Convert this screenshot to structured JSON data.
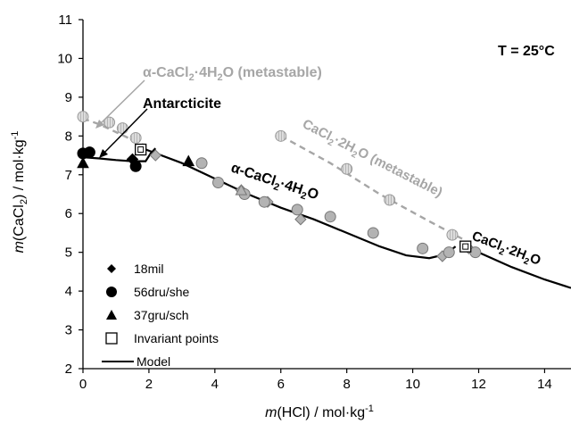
{
  "chart_data": {
    "type": "scatter",
    "xlabel": {
      "prefix": "m",
      "body": "(HCl) / mol·kg",
      "sup": "-1"
    },
    "ylabel": {
      "prefix": "m",
      "body1": "(CaCl",
      "sub": "2",
      "body2": ") / mol·kg",
      "sup": "-1"
    },
    "xlim": [
      0,
      14.8
    ],
    "ylim": [
      2,
      11
    ],
    "xticks": [
      "0",
      "2",
      "4",
      "6",
      "8",
      "10",
      "12",
      "14"
    ],
    "yticks": [
      "2",
      "3",
      "4",
      "5",
      "6",
      "7",
      "8",
      "9",
      "10",
      "11"
    ],
    "grid": false,
    "legend_position": "bottom-left",
    "legend": [
      {
        "name": "18mil",
        "marker": "diamond"
      },
      {
        "name": "56dru/she",
        "marker": "circle"
      },
      {
        "name": "37gru/sch",
        "marker": "triangle"
      },
      {
        "name": "Invariant points",
        "marker": "open-square"
      },
      {
        "name": "Model",
        "marker": "line"
      }
    ],
    "annotations": {
      "temperature": "T = 25°C",
      "antarcticite": "Antarcticite",
      "alpha_meta": {
        "alpha": "α",
        "text1": "-CaCl",
        "sub": "2",
        "text2": "·4H",
        "sub2": "2",
        "text3": "O (metastable)"
      },
      "alpha_stable": {
        "alpha": "α",
        "text1": "-CaCl",
        "sub": "2",
        "text2": "·4H",
        "sub2": "2",
        "text3": "O"
      },
      "dihydrate_meta": {
        "text1": "CaCl",
        "sub": "2",
        "text2": "·2H",
        "sub2": "2",
        "text3": "O (metastable)"
      },
      "dihydrate": {
        "text1": "CaCl",
        "sub": "2",
        "text2": "·2H",
        "sub2": "2",
        "text3": "O"
      }
    },
    "colors": {
      "black": "#000000",
      "grey_marker": "#b3b3b3",
      "meta_grey": "#a6a6a6",
      "hatched": "#c8c8c8"
    },
    "series": [
      {
        "name": "18mil",
        "marker": "diamond",
        "fill": "#000000",
        "points": [
          [
            1.5,
            7.4
          ]
        ]
      },
      {
        "name": "18mil-grey",
        "marker": "diamond",
        "fill": "#b3b3b3",
        "points": [
          [
            2.2,
            7.5
          ],
          [
            4.8,
            6.6
          ],
          [
            5.6,
            6.3
          ],
          [
            6.6,
            5.85
          ],
          [
            10.9,
            4.9
          ],
          [
            11.7,
            5.1
          ]
        ]
      },
      {
        "name": "56dru/she",
        "marker": "circle",
        "fill": "#000000",
        "points": [
          [
            0.0,
            7.55
          ],
          [
            0.2,
            7.58
          ],
          [
            1.6,
            7.22
          ]
        ]
      },
      {
        "name": "56dru/she-grey",
        "marker": "circle",
        "fill": "#b3b3b3",
        "points": [
          [
            3.6,
            7.3
          ],
          [
            4.1,
            6.8
          ],
          [
            4.9,
            6.5
          ],
          [
            5.5,
            6.3
          ],
          [
            6.5,
            6.1
          ],
          [
            7.5,
            5.92
          ],
          [
            8.8,
            5.5
          ],
          [
            10.3,
            5.1
          ],
          [
            11.1,
            5.0
          ],
          [
            11.9,
            5.0
          ]
        ]
      },
      {
        "name": "37gru/sch",
        "marker": "triangle",
        "fill": "#000000",
        "points": [
          [
            0.0,
            7.3
          ],
          [
            3.2,
            7.35
          ]
        ]
      },
      {
        "name": "37gru/sch-grey",
        "marker": "triangle",
        "fill": "#b3b3b3",
        "points": [
          [
            4.8,
            6.6
          ]
        ]
      },
      {
        "name": "Invariant points",
        "marker": "open-square",
        "fill": "none",
        "points": [
          [
            1.75,
            7.65
          ],
          [
            11.6,
            5.15
          ]
        ]
      },
      {
        "name": "hatched-alpha-meta",
        "marker": "hatched-circle",
        "fill": "#c8c8c8",
        "points": [
          [
            0.0,
            8.5
          ],
          [
            0.8,
            8.35
          ],
          [
            1.2,
            8.2
          ],
          [
            1.6,
            7.95
          ]
        ]
      },
      {
        "name": "hatched-dihydrate-meta",
        "marker": "hatched-circle",
        "fill": "#c8c8c8",
        "points": [
          [
            6.0,
            8.0
          ],
          [
            8.0,
            7.15
          ],
          [
            9.3,
            6.35
          ],
          [
            11.2,
            5.45
          ]
        ]
      },
      {
        "name": "Model-antarcticite",
        "line": "solid",
        "color": "#000000",
        "points": [
          [
            0.0,
            7.45
          ],
          [
            0.5,
            7.42
          ],
          [
            1.0,
            7.38
          ],
          [
            1.5,
            7.35
          ],
          [
            1.9,
            7.35
          ],
          [
            2.05,
            7.55
          ],
          [
            2.2,
            7.68
          ]
        ]
      },
      {
        "name": "Model-alpha",
        "line": "solid",
        "color": "#000000",
        "points": [
          [
            1.75,
            7.7
          ],
          [
            3.0,
            7.3
          ],
          [
            4.0,
            6.9
          ],
          [
            5.0,
            6.5
          ],
          [
            6.0,
            6.15
          ],
          [
            7.0,
            5.85
          ],
          [
            8.0,
            5.5
          ],
          [
            9.0,
            5.15
          ],
          [
            9.8,
            4.92
          ],
          [
            10.5,
            4.85
          ],
          [
            11.0,
            4.95
          ],
          [
            11.3,
            5.15
          ]
        ]
      },
      {
        "name": "Model-dihydrate",
        "line": "solid",
        "color": "#000000",
        "points": [
          [
            11.5,
            5.2
          ],
          [
            12.0,
            5.0
          ],
          [
            13.0,
            4.62
          ],
          [
            14.0,
            4.3
          ],
          [
            14.8,
            4.08
          ]
        ]
      },
      {
        "name": "Model-alpha-meta",
        "line": "dashed",
        "color": "#a6a6a6",
        "points": [
          [
            0.0,
            8.45
          ],
          [
            0.5,
            8.3
          ],
          [
            1.0,
            8.1
          ],
          [
            1.5,
            7.9
          ],
          [
            1.9,
            7.75
          ]
        ]
      },
      {
        "name": "Model-dihydrate-meta",
        "line": "dashed",
        "color": "#a6a6a6",
        "points": [
          [
            6.0,
            8.0
          ],
          [
            7.5,
            7.3
          ],
          [
            9.0,
            6.5
          ],
          [
            10.5,
            5.8
          ],
          [
            11.5,
            5.35
          ]
        ]
      }
    ]
  }
}
